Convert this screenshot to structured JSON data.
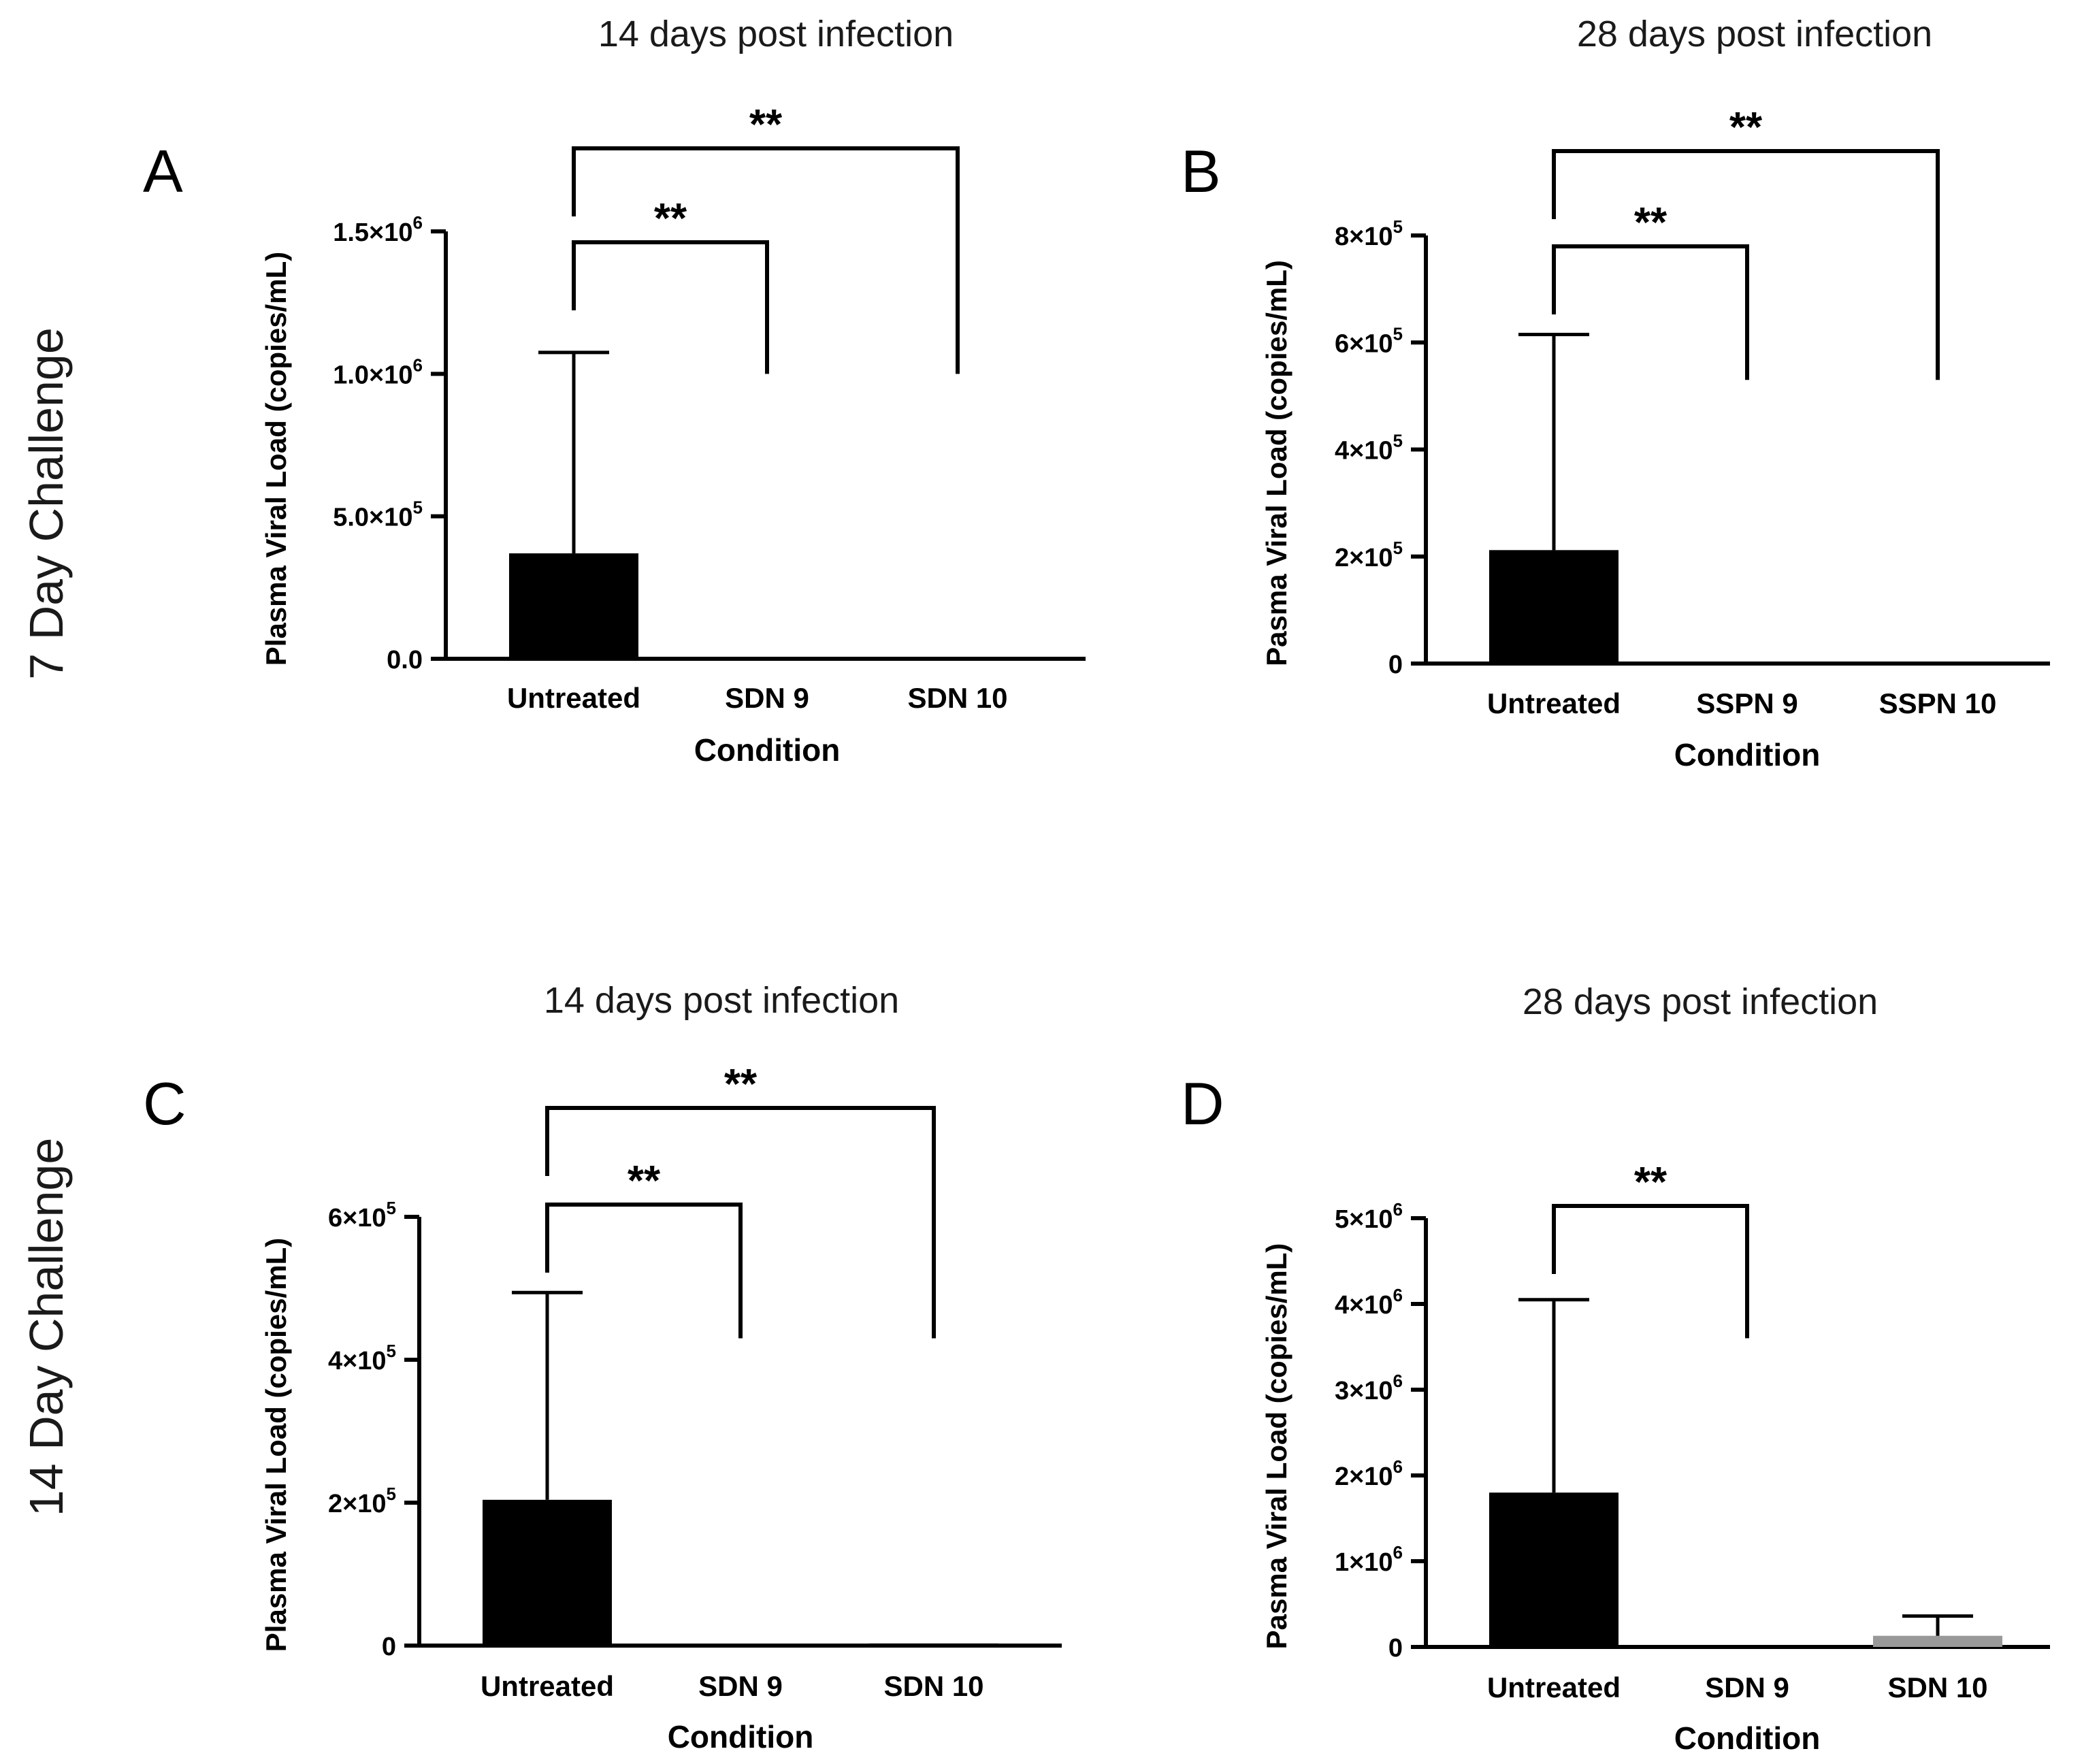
{
  "row_labels": [
    "7 Day Challenge",
    "14 Day Challenge"
  ],
  "chart_data": [
    {
      "panel": "A",
      "type": "bar",
      "title": "14 days post infection",
      "xlabel": "Condition",
      "ylabel": "Plasma Viral Load (copies/mL)",
      "categories": [
        "Untreated",
        "SDN 9",
        "SDN 10"
      ],
      "values": [
        370000,
        0,
        0
      ],
      "errors": [
        705000,
        0,
        0
      ],
      "bar_colors": [
        "#000000",
        "#000000",
        "#000000"
      ],
      "ylim": [
        0,
        1500000
      ],
      "yticks": [
        {
          "value": 0,
          "base": "0.0",
          "exp": ""
        },
        {
          "value": 500000,
          "base": "5.0×10",
          "exp": "5"
        },
        {
          "value": 1000000,
          "base": "1.0×10",
          "exp": "6"
        },
        {
          "value": 1500000,
          "base": "1.5×10",
          "exp": "6"
        }
      ],
      "significance": [
        {
          "from": 0,
          "to": 1,
          "label": "**",
          "drop_to": 1000000
        },
        {
          "from": 0,
          "to": 2,
          "label": "**",
          "drop_to": 1000000
        }
      ]
    },
    {
      "panel": "B",
      "type": "bar",
      "title": "28 days post infection",
      "xlabel": "Condition",
      "ylabel": "Pasma Viral Load (copies/mL)",
      "categories": [
        "Untreated",
        "SSPN 9",
        "SSPN 10"
      ],
      "values": [
        212000,
        0,
        0
      ],
      "errors": [
        403000,
        0,
        0
      ],
      "bar_colors": [
        "#000000",
        "#000000",
        "#000000"
      ],
      "ylim": [
        0,
        800000
      ],
      "yticks": [
        {
          "value": 0,
          "base": "0",
          "exp": ""
        },
        {
          "value": 200000,
          "base": "2×10",
          "exp": "5"
        },
        {
          "value": 400000,
          "base": "4×10",
          "exp": "5"
        },
        {
          "value": 600000,
          "base": "6×10",
          "exp": "5"
        },
        {
          "value": 800000,
          "base": "8×10",
          "exp": "5"
        }
      ],
      "significance": [
        {
          "from": 0,
          "to": 1,
          "label": "**",
          "drop_to": 530000
        },
        {
          "from": 0,
          "to": 2,
          "label": "**",
          "drop_to": 530000
        }
      ]
    },
    {
      "panel": "C",
      "type": "bar",
      "title": "14 days post infection",
      "xlabel": "Condition",
      "ylabel": "Plasma Viral Load (copies/mL)",
      "categories": [
        "Untreated",
        "SDN 9",
        "SDN 10"
      ],
      "values": [
        204000,
        1500,
        3000
      ],
      "errors": [
        290000,
        0,
        0
      ],
      "bar_colors": [
        "#000000",
        "#000000",
        "#000000"
      ],
      "ylim": [
        0,
        600000
      ],
      "yticks": [
        {
          "value": 0,
          "base": "0",
          "exp": ""
        },
        {
          "value": 200000,
          "base": "2×10",
          "exp": "5"
        },
        {
          "value": 400000,
          "base": "4×10",
          "exp": "5"
        },
        {
          "value": 600000,
          "base": "6×10",
          "exp": "5"
        }
      ],
      "significance": [
        {
          "from": 0,
          "to": 1,
          "label": "**",
          "drop_to": 430000
        },
        {
          "from": 0,
          "to": 2,
          "label": "**",
          "drop_to": 430000
        }
      ]
    },
    {
      "panel": "D",
      "type": "bar",
      "title": "28 days post infection",
      "xlabel": "Condition",
      "ylabel": "Pasma Viral Load (copies/mL)",
      "categories": [
        "Untreated",
        "SDN 9",
        "SDN 10"
      ],
      "values": [
        1800000,
        5000,
        130000
      ],
      "errors": [
        2250000,
        0,
        230000
      ],
      "bar_colors": [
        "#000000",
        "#000000",
        "#999999"
      ],
      "ylim": [
        0,
        5000000
      ],
      "yticks": [
        {
          "value": 0,
          "base": "0",
          "exp": ""
        },
        {
          "value": 1000000,
          "base": "1×10",
          "exp": "6"
        },
        {
          "value": 2000000,
          "base": "2×10",
          "exp": "6"
        },
        {
          "value": 3000000,
          "base": "3×10",
          "exp": "6"
        },
        {
          "value": 4000000,
          "base": "4×10",
          "exp": "6"
        },
        {
          "value": 5000000,
          "base": "5×10",
          "exp": "6"
        }
      ],
      "significance": [
        {
          "from": 0,
          "to": 1,
          "label": "**",
          "drop_to": 3600000
        }
      ]
    }
  ]
}
